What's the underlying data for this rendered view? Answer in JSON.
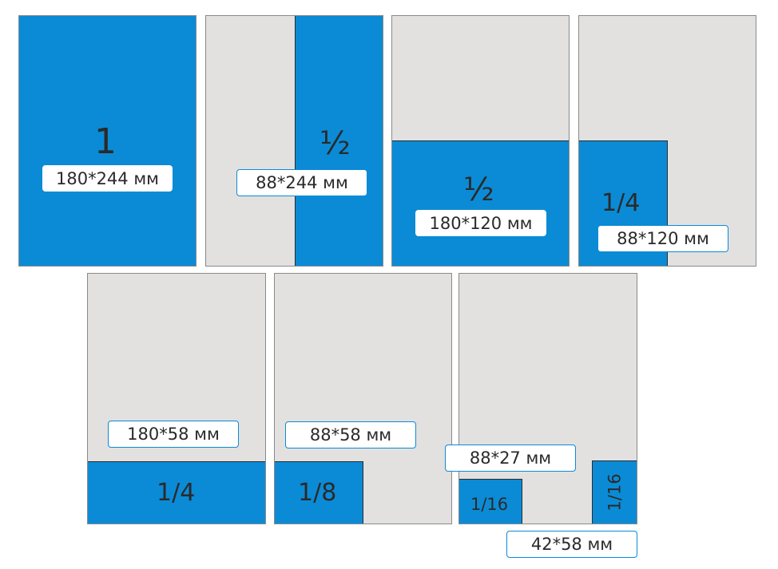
{
  "colors": {
    "blue": "#0b8bd6",
    "page_gray": "#e2e1e0"
  },
  "panels": [
    {
      "fraction": "1",
      "size": "180*244 мм"
    },
    {
      "fraction": "½",
      "size": "88*244 мм"
    },
    {
      "fraction": "½",
      "size": "180*120 мм"
    },
    {
      "fraction": "1/4",
      "size": "88*120 мм"
    },
    {
      "fraction": "1/4",
      "size": "180*58 мм"
    },
    {
      "fraction": "1/8",
      "size": "88*58 мм"
    },
    {
      "fraction": "1/16",
      "fraction_vertical": "1/16",
      "size": "88*27 мм",
      "size_2": "42*58 мм"
    }
  ]
}
